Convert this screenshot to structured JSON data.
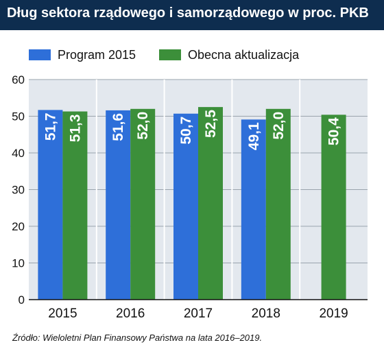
{
  "header": {
    "title": "Dług sektora rządowego i samorządowego w proc. PKB"
  },
  "footer": {
    "source": "Źródło: Wieloletni Plan Finansowy Państwa na lata 2016–2019."
  },
  "colors": {
    "title_bg": "#0e2d4f",
    "plot_bg": "#e3e8ee",
    "series_1": "#2e6fd9",
    "series_2": "#3c8f3a",
    "bar_label": "#ffffff"
  },
  "chart_data": {
    "type": "bar",
    "categories": [
      "2015",
      "2016",
      "2017",
      "2018",
      "2019"
    ],
    "series": [
      {
        "name": "Program 2015",
        "values": [
          51.7,
          51.6,
          50.7,
          49.1,
          null
        ],
        "labels": [
          "51,7",
          "51,6",
          "50,7",
          "49,1",
          null
        ]
      },
      {
        "name": "Obecna aktualizacja",
        "values": [
          51.3,
          52.0,
          52.5,
          52.0,
          50.4
        ],
        "labels": [
          "51,3",
          "52,0",
          "52,5",
          "52,0",
          "50,4"
        ]
      }
    ],
    "title": "Dług sektora rządowego i samorządowego w proc. PKB",
    "xlabel": "",
    "ylabel": "",
    "ylim": [
      0,
      60
    ],
    "yticks": [
      0,
      10,
      20,
      30,
      40,
      50,
      60
    ],
    "grid": true,
    "legend": "top-left"
  }
}
